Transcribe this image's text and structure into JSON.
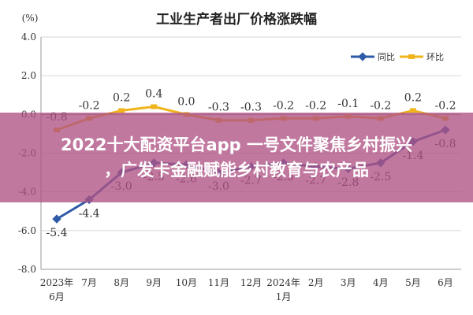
{
  "chart_data": {
    "type": "line",
    "title": "工业生产者出厂价格涨跌幅",
    "unit_label": "(%)",
    "ylim": [
      -8.0,
      4.0
    ],
    "yticks": [
      "4.0",
      "2.0",
      "0.0",
      "-2.0",
      "-4.0",
      "-6.0",
      "-8.0"
    ],
    "categories": [
      "2023年 6月",
      "7月",
      "8月",
      "9月",
      "10月",
      "11月",
      "12月",
      "2024年 1月",
      "2月",
      "3月",
      "4月",
      "5月",
      "6月"
    ],
    "category_lines": [
      [
        "2023年",
        "6月"
      ],
      [
        "7月"
      ],
      [
        "8月"
      ],
      [
        "9月"
      ],
      [
        "10月"
      ],
      [
        "11月"
      ],
      [
        "12月"
      ],
      [
        "2024年",
        "1月"
      ],
      [
        "2月"
      ],
      [
        "3月"
      ],
      [
        "4月"
      ],
      [
        "5月"
      ],
      [
        "6月"
      ]
    ],
    "series": [
      {
        "name": "同比",
        "color": "#2e5aa7",
        "values": [
          -5.4,
          -4.4,
          -3.0,
          -2.5,
          -2.6,
          -3.0,
          -2.7,
          -2.5,
          -2.7,
          -2.8,
          -2.5,
          -1.4,
          -0.8
        ],
        "labels": [
          "-5.4",
          "-4.4",
          "-3.0",
          "-2.5",
          "-2.6",
          "-3.0",
          "-2.7",
          "-2.5",
          "-2.7",
          "-2.8",
          "-2.5",
          "-1.4",
          "-0.8"
        ]
      },
      {
        "name": "环比",
        "color": "#f0b41c",
        "values": [
          -0.8,
          -0.2,
          0.2,
          0.4,
          0.0,
          -0.3,
          -0.3,
          -0.2,
          -0.2,
          -0.1,
          -0.2,
          0.2,
          -0.2
        ],
        "labels": [
          "-0.8",
          "-0.2",
          "0.2",
          "0.4",
          "0.0",
          "-0.3",
          "-0.3",
          "-0.2",
          "-0.2",
          "-0.1",
          "-0.2",
          "0.2",
          "-0.2"
        ]
      }
    ],
    "overlay_color": "#c07080",
    "grid": true,
    "legend_position": "top-right"
  },
  "overlay": {
    "line1": "2022十大配资平台app 一号文件聚焦乡村振兴",
    "line2": "，广发卡金融赋能乡村教育与农产品"
  }
}
